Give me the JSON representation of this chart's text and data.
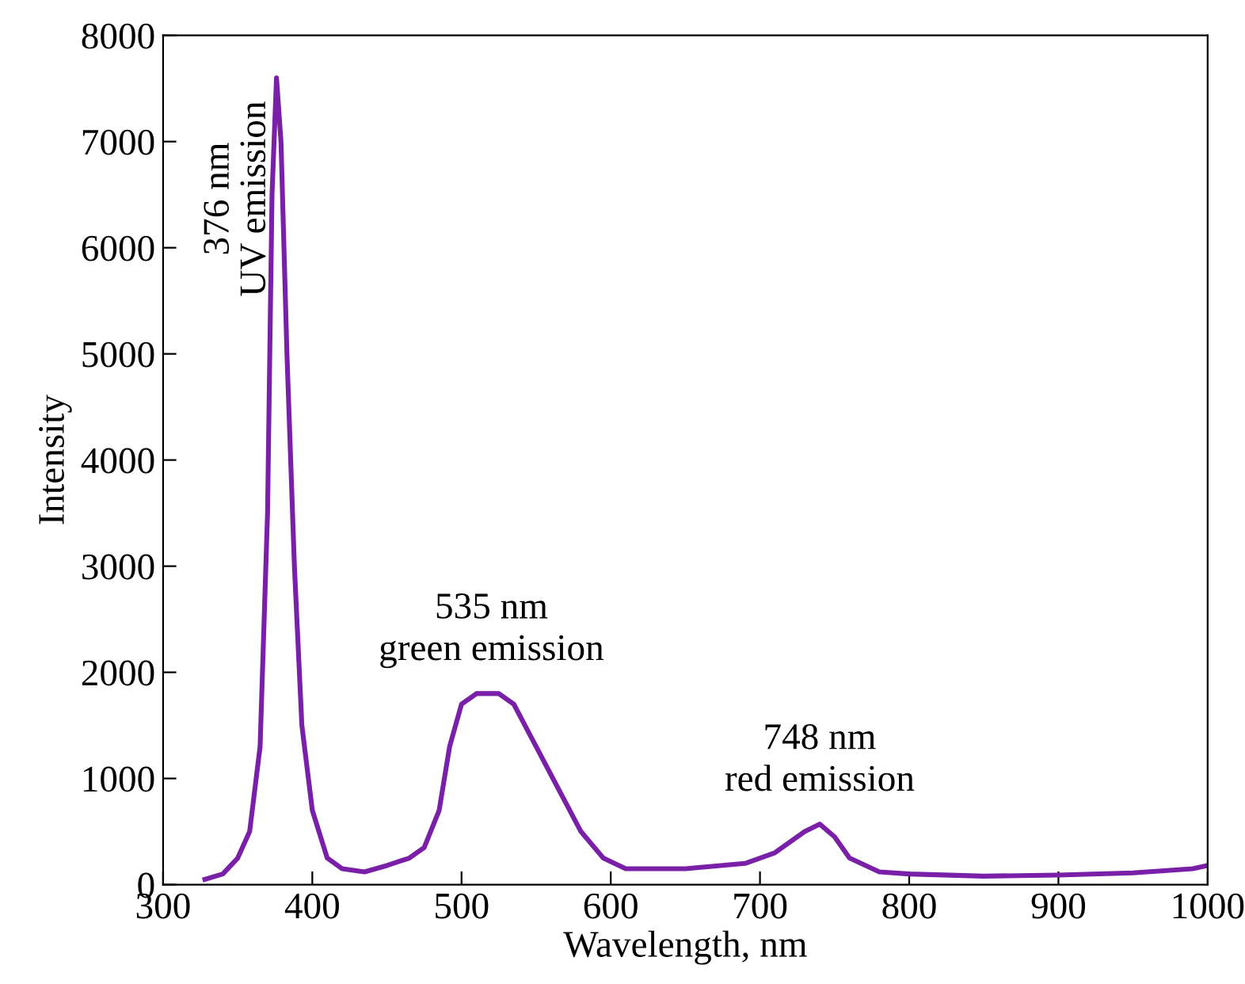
{
  "chart_data": {
    "type": "line",
    "xlabel": "Wavelength, nm",
    "ylabel": "Intensity",
    "x": [
      328,
      340,
      350,
      358,
      365,
      370,
      373,
      376,
      379,
      383,
      388,
      393,
      400,
      410,
      420,
      435,
      450,
      465,
      475,
      485,
      492,
      500,
      510,
      525,
      535,
      550,
      565,
      580,
      595,
      610,
      650,
      690,
      710,
      730,
      740,
      750,
      760,
      780,
      800,
      850,
      900,
      950,
      990,
      1000
    ],
    "series": [
      {
        "color": "#7a1fa8",
        "values": [
          50,
          100,
          250,
          500,
          1300,
          3500,
          6500,
          7600,
          7000,
          5000,
          3000,
          1500,
          700,
          250,
          150,
          120,
          180,
          250,
          350,
          700,
          1300,
          1700,
          1800,
          1800,
          1700,
          1300,
          900,
          500,
          250,
          150,
          150,
          200,
          300,
          500,
          570,
          450,
          250,
          120,
          100,
          80,
          90,
          110,
          150,
          180
        ]
      }
    ],
    "xlim": [
      300,
      1000
    ],
    "ylim": [
      0,
      8000
    ],
    "xticks": [
      300,
      400,
      500,
      600,
      700,
      800,
      900,
      1000
    ],
    "yticks": [
      0,
      1000,
      2000,
      3000,
      4000,
      5000,
      6000,
      7000,
      8000
    ],
    "grid": false,
    "legend": false,
    "marker": "none",
    "line_style": "solid",
    "annotations": [
      {
        "text": "376 nm\nUV emission",
        "x": 376,
        "y": 7600
      },
      {
        "text": "535 nm\ngreen emission",
        "x": 520,
        "y": 1800
      },
      {
        "text": "748 nm\nred emission",
        "x": 740,
        "y": 570
      }
    ]
  }
}
